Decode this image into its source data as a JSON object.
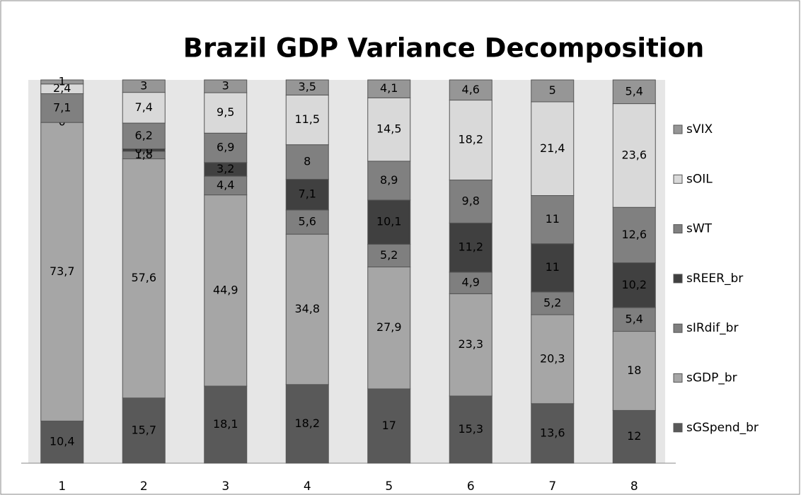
{
  "chart_data": {
    "type": "bar",
    "stacking": "percent",
    "title": "Brazil GDP Variance Decomposition",
    "categories": [
      "1",
      "2",
      "3",
      "4",
      "5",
      "6",
      "7",
      "8"
    ],
    "series": [
      {
        "name": "sGSpend_br",
        "color": "#595959",
        "values": [
          10.4,
          15.7,
          18.1,
          18.2,
          17,
          15.3,
          13.6,
          12
        ],
        "value_labels": [
          "10,4",
          "15,7",
          "18,1",
          "18,2",
          "17",
          "15,3",
          "13,6",
          "12"
        ]
      },
      {
        "name": "sGDP_br",
        "color": "#a6a6a6",
        "values": [
          73.7,
          57.6,
          44.9,
          34.8,
          27.9,
          23.3,
          20.3,
          18
        ],
        "value_labels": [
          "73,7",
          "57,6",
          "44,9",
          "34,8",
          "27,9",
          "23,3",
          "20,3",
          "18"
        ]
      },
      {
        "name": "sIRdif_br",
        "color": "#7f7f7f",
        "values": [
          0,
          1.8,
          4.4,
          5.6,
          5.2,
          4.9,
          5.2,
          5.4
        ],
        "value_labels": [
          "0",
          "1,8",
          "4,4",
          "5,6",
          "5,2",
          "4,9",
          "5,2",
          "5,4"
        ]
      },
      {
        "name": "sREER_br",
        "color": "#404040",
        "values": [
          null,
          0.6,
          3.2,
          7.1,
          10.1,
          11.2,
          11,
          10.2
        ],
        "value_labels": [
          null,
          "0,6",
          "3,2",
          "7,1",
          "10,1",
          "11,2",
          "11",
          "10,2"
        ]
      },
      {
        "name": "sWT",
        "color": "#808080",
        "values": [
          7.1,
          6.2,
          6.9,
          8,
          8.9,
          9.8,
          11,
          12.6
        ],
        "value_labels": [
          "7,1",
          "6,2",
          "6,9",
          "8",
          "8,9",
          "9,8",
          "11",
          "12,6"
        ]
      },
      {
        "name": "sOIL",
        "color": "#d9d9d9",
        "values": [
          2.4,
          7.4,
          9.5,
          11.5,
          14.5,
          18.2,
          21.4,
          23.6
        ],
        "value_labels": [
          "2,4",
          "7,4",
          "9,5",
          "11,5",
          "14,5",
          "18,2",
          "21,4",
          "23,6"
        ]
      },
      {
        "name": "sVIX",
        "color": "#969696",
        "values": [
          1,
          3,
          3,
          3.5,
          4.1,
          4.6,
          5,
          5.4
        ],
        "value_labels": [
          "1",
          "3",
          "3",
          "3,5",
          "4,1",
          "4,6",
          "5",
          "5,4"
        ]
      }
    ]
  }
}
